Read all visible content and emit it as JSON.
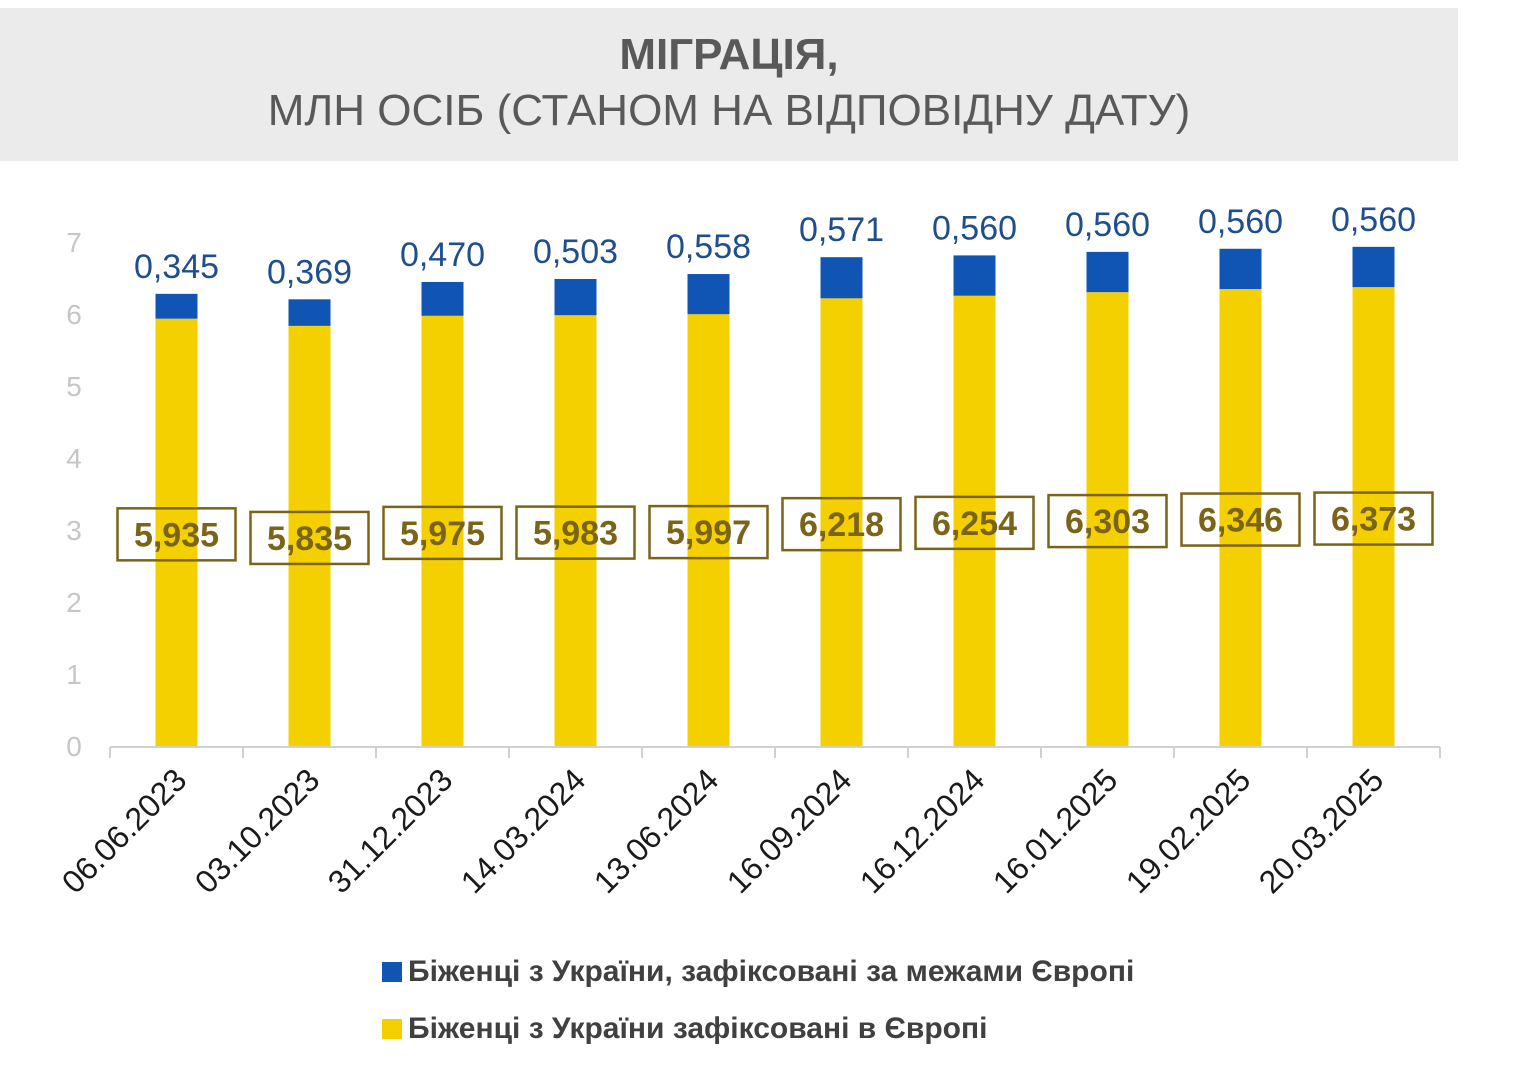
{
  "title": {
    "line1": "МІГРАЦІЯ,",
    "line2": "МЛН ОСІБ (СТАНОМ НА ВІДПОВІДНУ ДАТУ)"
  },
  "colors": {
    "outside_europe": "#1155b4",
    "in_europe": "#f5d000",
    "top_label": "#1f4e8c",
    "box_label": "#7a6418",
    "axis_tick": "#c6c6c6"
  },
  "chart_data": {
    "type": "bar",
    "stacked": true,
    "categories": [
      "06.06.2023",
      "03.10.2023",
      "31.12.2023",
      "14.03.2024",
      "13.06.2024",
      "16.09.2024",
      "16.12.2024",
      "16.01.2025",
      "19.02.2025",
      "20.03.2025"
    ],
    "series": [
      {
        "name": "Біженці з України зафіксовані в Європі",
        "values": [
          5.935,
          5.835,
          5.975,
          5.983,
          5.997,
          6.218,
          6.254,
          6.303,
          6.346,
          6.373
        ],
        "labels": [
          "5,935",
          "5,835",
          "5,975",
          "5,983",
          "5,997",
          "6,218",
          "6,254",
          "6,303",
          "6,346",
          "6,373"
        ]
      },
      {
        "name": "Біженці з України, зафіксовані за межами Європі",
        "values": [
          0.345,
          0.369,
          0.47,
          0.503,
          0.558,
          0.571,
          0.56,
          0.56,
          0.56,
          0.56
        ],
        "labels": [
          "0,345",
          "0,369",
          "0,470",
          "0,503",
          "0,558",
          "0,571",
          "0,560",
          "0,560",
          "0,560",
          "0,560"
        ]
      }
    ],
    "y_ticks": [
      "0",
      "1",
      "2",
      "3",
      "4",
      "5",
      "6",
      "7"
    ],
    "ylim": [
      0,
      7
    ],
    "grid": false,
    "legend_position": "bottom"
  }
}
